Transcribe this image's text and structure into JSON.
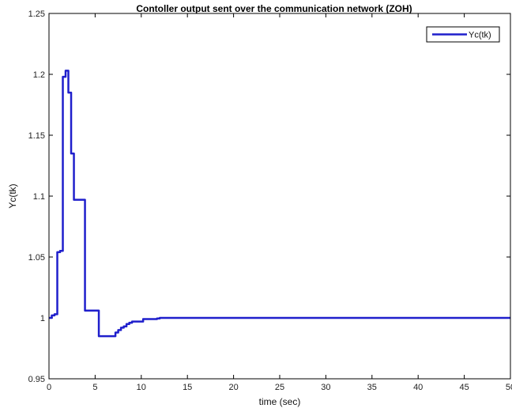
{
  "chart_data": {
    "type": "line",
    "title": "Contoller output sent over the communication network (ZOH)",
    "xlabel": "time (sec)",
    "ylabel": "Yc(tk)",
    "xlim": [
      0,
      50
    ],
    "ylim": [
      0.95,
      1.25
    ],
    "xticks": [
      0,
      5,
      10,
      15,
      20,
      25,
      30,
      35,
      40,
      45,
      50
    ],
    "xtick_labels": [
      "0",
      "5",
      "10",
      "15",
      "20",
      "25",
      "30",
      "35",
      "40",
      "45",
      "50"
    ],
    "yticks": [
      0.95,
      1,
      1.05,
      1.1,
      1.15,
      1.2,
      1.25
    ],
    "ytick_labels": [
      "0.95",
      "1",
      "1.05",
      "1.1",
      "1.15",
      "1.2",
      "1.25"
    ],
    "grid": false,
    "legend_position": "top-right",
    "series": [
      {
        "name": "Yc(tk)",
        "color": "#1f1fcc",
        "step": true,
        "x": [
          0,
          0.3,
          0.6,
          0.9,
          1.2,
          1.5,
          1.8,
          2.1,
          2.4,
          2.7,
          3.0,
          3.3,
          3.6,
          3.9,
          4.2,
          4.5,
          4.8,
          5.1,
          5.4,
          5.7,
          6.0,
          6.3,
          6.6,
          6.9,
          7.2,
          7.5,
          7.8,
          8.1,
          8.4,
          8.7,
          9.0,
          9.3,
          9.6,
          9.9,
          10.2,
          10.5,
          10.8,
          11.1,
          11.4,
          11.7,
          12.0,
          15,
          20,
          25,
          30,
          35,
          40,
          45,
          50
        ],
        "y": [
          1.0,
          1.002,
          1.003,
          1.054,
          1.055,
          1.198,
          1.203,
          1.185,
          1.135,
          1.097,
          1.097,
          1.097,
          1.097,
          1.006,
          1.006,
          1.006,
          1.006,
          1.006,
          0.985,
          0.985,
          0.985,
          0.985,
          0.985,
          0.985,
          0.988,
          0.99,
          0.992,
          0.993,
          0.995,
          0.996,
          0.997,
          0.997,
          0.997,
          0.997,
          0.999,
          0.999,
          0.999,
          0.999,
          0.999,
          0.9995,
          1.0,
          1.0,
          1.0,
          1.0,
          1.0,
          1.0,
          1.0,
          1.0,
          1.0
        ]
      }
    ]
  }
}
